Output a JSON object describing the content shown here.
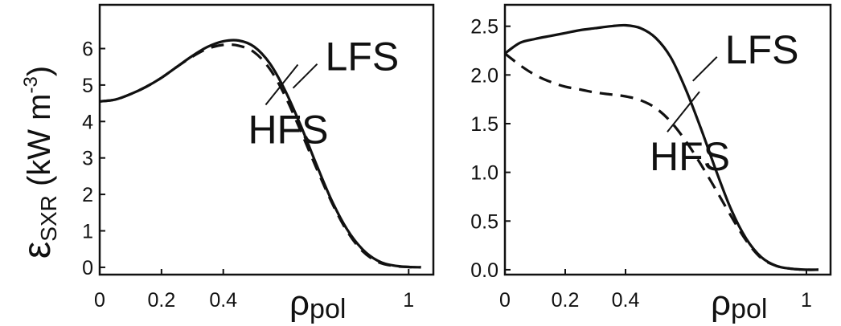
{
  "figure": {
    "ylabel": {
      "symbol": "ε",
      "subscript": "SXR",
      "unit_open": " (kW m",
      "unit_sup": "-3",
      "unit_close": ")"
    }
  },
  "chart_data": [
    {
      "type": "line",
      "xlabel": "ρpol",
      "xlabel_symbol": "ρ",
      "xlabel_sub": "pol",
      "ylabel": "εSXR (kW m-3)",
      "xlim": [
        0,
        1.08
      ],
      "ylim": [
        -0.2,
        7.2
      ],
      "x_ticks": [
        "0",
        "0.2",
        "0.4",
        "1"
      ],
      "x_tick_values": [
        0,
        0.2,
        0.4,
        1.0
      ],
      "y_ticks": [
        "0",
        "1",
        "2",
        "3",
        "4",
        "5",
        "6"
      ],
      "y_tick_values": [
        0,
        1,
        2,
        3,
        4,
        5,
        6
      ],
      "grid": false,
      "series": [
        {
          "name": "LFS",
          "style": "solid",
          "x": [
            0,
            0.05,
            0.1,
            0.15,
            0.2,
            0.25,
            0.3,
            0.35,
            0.4,
            0.45,
            0.5,
            0.55,
            0.6,
            0.65,
            0.7,
            0.75,
            0.8,
            0.85,
            0.9,
            0.95,
            1.0,
            1.04
          ],
          "y": [
            4.55,
            4.6,
            4.75,
            4.95,
            5.2,
            5.5,
            5.8,
            6.05,
            6.2,
            6.22,
            6.05,
            5.6,
            4.85,
            3.9,
            2.85,
            1.85,
            1.05,
            0.5,
            0.18,
            0.05,
            0.01,
            0.0
          ]
        },
        {
          "name": "HFS",
          "style": "dashed",
          "x": [
            0,
            0.05,
            0.1,
            0.15,
            0.2,
            0.25,
            0.3,
            0.35,
            0.4,
            0.45,
            0.5,
            0.55,
            0.6,
            0.65,
            0.7,
            0.75,
            0.8,
            0.85,
            0.9,
            0.95,
            1.0,
            1.04
          ],
          "y": [
            4.55,
            4.6,
            4.75,
            4.95,
            5.2,
            5.5,
            5.78,
            6.0,
            6.1,
            6.08,
            5.9,
            5.45,
            4.7,
            3.75,
            2.75,
            1.8,
            1.0,
            0.45,
            0.15,
            0.04,
            0.01,
            0.0
          ]
        }
      ],
      "annotations": [
        {
          "text": "LFS",
          "x": 0.73,
          "y": 5.4
        },
        {
          "text": "HFS",
          "x": 0.48,
          "y": 3.4
        }
      ]
    },
    {
      "type": "line",
      "xlabel": "ρpol",
      "xlabel_symbol": "ρ",
      "xlabel_sub": "pol",
      "xlim": [
        0,
        1.08
      ],
      "ylim": [
        -0.05,
        2.72
      ],
      "x_ticks": [
        "0",
        "0.2",
        "0.4",
        "1"
      ],
      "x_tick_values": [
        0,
        0.2,
        0.4,
        1.0
      ],
      "y_ticks": [
        "0.0",
        "0.5",
        "1.0",
        "1.5",
        "2.0",
        "2.5"
      ],
      "y_tick_values": [
        0,
        0.5,
        1.0,
        1.5,
        2.0,
        2.5
      ],
      "grid": false,
      "series": [
        {
          "name": "LFS",
          "style": "solid",
          "x": [
            0,
            0.05,
            0.1,
            0.15,
            0.2,
            0.25,
            0.3,
            0.35,
            0.4,
            0.45,
            0.5,
            0.55,
            0.6,
            0.65,
            0.7,
            0.75,
            0.8,
            0.85,
            0.9,
            0.95,
            1.0,
            1.04
          ],
          "y": [
            2.22,
            2.33,
            2.37,
            2.4,
            2.43,
            2.46,
            2.48,
            2.5,
            2.51,
            2.48,
            2.38,
            2.18,
            1.85,
            1.45,
            1.02,
            0.62,
            0.32,
            0.13,
            0.04,
            0.01,
            0.0,
            0.0
          ]
        },
        {
          "name": "HFS",
          "style": "dashed",
          "x": [
            0,
            0.05,
            0.1,
            0.15,
            0.2,
            0.25,
            0.3,
            0.35,
            0.4,
            0.45,
            0.5,
            0.55,
            0.6,
            0.65,
            0.7,
            0.75,
            0.8,
            0.85,
            0.9,
            0.95,
            1.0,
            1.04
          ],
          "y": [
            2.22,
            2.1,
            2.0,
            1.93,
            1.88,
            1.85,
            1.82,
            1.8,
            1.78,
            1.74,
            1.66,
            1.52,
            1.32,
            1.08,
            0.82,
            0.55,
            0.3,
            0.12,
            0.04,
            0.01,
            0.0,
            0.0
          ]
        }
      ],
      "annotations": [
        {
          "text": "LFS",
          "x": 0.73,
          "y": 2.12
        },
        {
          "text": "HFS",
          "x": 0.48,
          "y": 1.02
        }
      ]
    }
  ]
}
